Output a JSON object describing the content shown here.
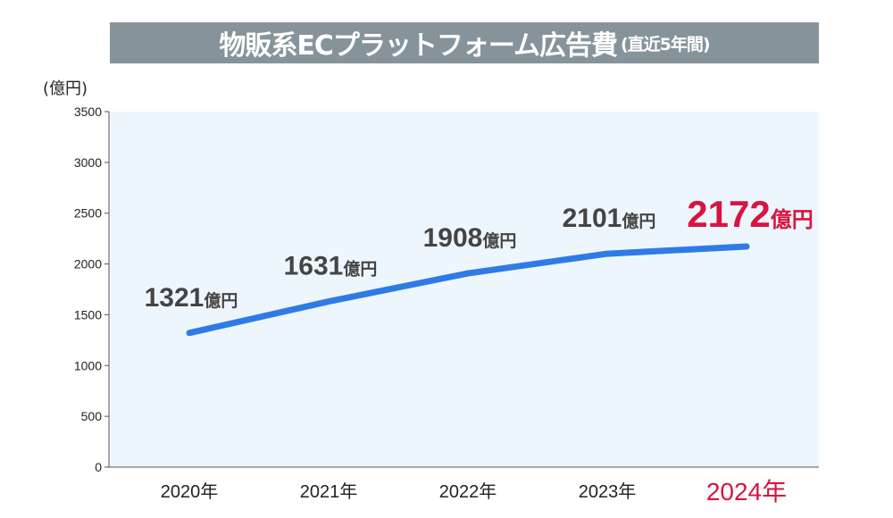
{
  "chart_data": {
    "type": "line",
    "title": "物販系ECプラットフォーム広告費",
    "subtitle": "(直近5年間)",
    "ylabel": "(億円)",
    "xlabel": "",
    "ylim": [
      0,
      3500
    ],
    "yticks": [
      0,
      500,
      1000,
      1500,
      2000,
      2500,
      3000,
      3500
    ],
    "categories": [
      "2020年",
      "2021年",
      "2022年",
      "2023年",
      "2024年"
    ],
    "values": [
      1321,
      1631,
      1908,
      2101,
      2172
    ],
    "value_unit": "億円",
    "grid": false,
    "colors": {
      "line": "#2f7be6",
      "highlight": "#d81440",
      "label": "#444444",
      "plot_bg": "#eef6fd",
      "title_bg": "#87939a"
    },
    "highlight_index": 4
  }
}
